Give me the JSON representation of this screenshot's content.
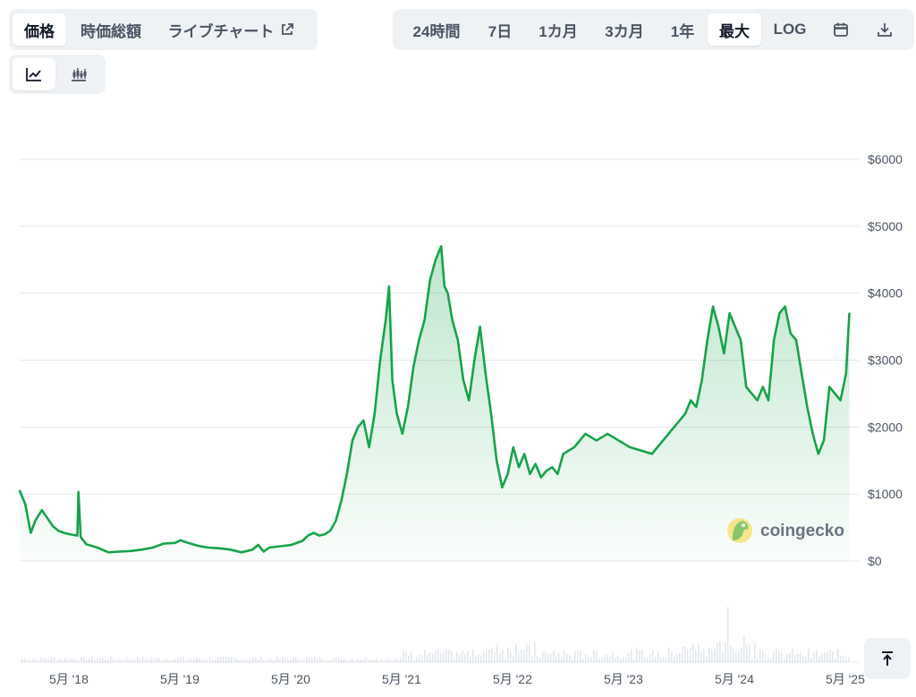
{
  "tabs_left": {
    "price": "価格",
    "market_cap": "時価総額",
    "live_chart": "ライブチャート"
  },
  "chart_style": {
    "line_icon": "line-chart-icon",
    "candle_icon": "candlestick-chart-icon",
    "selected": "line"
  },
  "ranges": {
    "items": [
      "24時間",
      "7日",
      "1カ月",
      "3カ月",
      "1年",
      "最大",
      "LOG"
    ],
    "selected": "最大",
    "calendar_icon": "calendar-icon",
    "download_icon": "download-icon"
  },
  "watermark": "coingecko",
  "colors": {
    "line": "#16a34a",
    "volume": "#cbd5e1",
    "grid": "#e5e7eb"
  },
  "chart_data": {
    "type": "area",
    "y_tick_labels": [
      "$6000",
      "$5000",
      "$4000",
      "$3000",
      "$2000",
      "$1000",
      "$0"
    ],
    "y_ticks": [
      6000,
      5000,
      4000,
      3000,
      2000,
      1000,
      0
    ],
    "ylim": [
      0,
      6000
    ],
    "x_tick_labels": [
      "5月 '18",
      "5月 '19",
      "5月 '20",
      "5月 '21",
      "5月 '22",
      "5月 '23",
      "5月 '24",
      "5月 '25"
    ],
    "x_ticks": [
      2018.33,
      2019.33,
      2020.33,
      2021.33,
      2022.33,
      2023.33,
      2024.33,
      2025.33
    ],
    "xlim": [
      2018.0,
      2025.5
    ],
    "grid": true,
    "series": [
      {
        "x": [
          2018.0,
          2018.05,
          2018.1,
          2018.14,
          2018.2,
          2018.25,
          2018.3,
          2018.35,
          2018.4,
          2018.45,
          2018.52,
          2018.53,
          2018.55,
          2018.6,
          2018.7,
          2018.8,
          2018.9,
          2019.0,
          2019.1,
          2019.2,
          2019.3,
          2019.4,
          2019.45,
          2019.5,
          2019.6,
          2019.7,
          2019.8,
          2019.9,
          2020.0,
          2020.1,
          2020.15,
          2020.2,
          2020.25,
          2020.35,
          2020.45,
          2020.55,
          2020.6,
          2020.65,
          2020.7,
          2020.75,
          2020.8,
          2020.85,
          2020.9,
          2020.95,
          2021.0,
          2021.05,
          2021.1,
          2021.15,
          2021.2,
          2021.25,
          2021.3,
          2021.33,
          2021.36,
          2021.4,
          2021.45,
          2021.5,
          2021.55,
          2021.6,
          2021.65,
          2021.7,
          2021.75,
          2021.8,
          2021.83,
          2021.86,
          2021.9,
          2021.95,
          2022.0,
          2022.05,
          2022.1,
          2022.15,
          2022.2,
          2022.25,
          2022.3,
          2022.35,
          2022.4,
          2022.45,
          2022.5,
          2022.55,
          2022.6,
          2022.65,
          2022.7,
          2022.75,
          2022.8,
          2022.85,
          2022.9,
          2023.0,
          2023.1,
          2023.2,
          2023.3,
          2023.4,
          2023.5,
          2023.6,
          2023.7,
          2023.8,
          2023.9,
          2024.0,
          2024.05,
          2024.1,
          2024.15,
          2024.2,
          2024.25,
          2024.3,
          2024.35,
          2024.4,
          2024.45,
          2024.5,
          2024.55,
          2024.6,
          2024.65,
          2024.7,
          2024.75,
          2024.8,
          2024.85,
          2024.9,
          2024.95,
          2025.0,
          2025.05,
          2025.1,
          2025.15,
          2025.2,
          2025.25,
          2025.3,
          2025.35,
          2025.4,
          2025.45,
          2025.48
        ],
        "values": [
          1050,
          850,
          420,
          600,
          760,
          640,
          520,
          450,
          420,
          400,
          380,
          1030,
          360,
          250,
          200,
          130,
          140,
          150,
          170,
          200,
          260,
          270,
          310,
          280,
          230,
          200,
          190,
          170,
          130,
          170,
          240,
          140,
          200,
          220,
          240,
          300,
          380,
          420,
          380,
          400,
          450,
          600,
          900,
          1300,
          1800,
          2000,
          2100,
          1700,
          2200,
          3000,
          3600,
          4100,
          2700,
          2200,
          1900,
          2300,
          2900,
          3300,
          3600,
          4200,
          4500,
          4700,
          4100,
          4000,
          3600,
          3300,
          2700,
          2400,
          3000,
          3500,
          2800,
          2200,
          1500,
          1100,
          1300,
          1700,
          1400,
          1600,
          1300,
          1450,
          1250,
          1350,
          1400,
          1300,
          1600,
          1700,
          1900,
          1800,
          1900,
          1800,
          1700,
          1650,
          1600,
          1800,
          2000,
          2200,
          2400,
          2300,
          2700,
          3300,
          3800,
          3500,
          3100,
          3700,
          3500,
          3300,
          2600,
          2500,
          2400,
          2600,
          2400,
          3300,
          3700,
          3800,
          3400,
          3300,
          2800,
          2300,
          1900,
          1600,
          1800,
          2600,
          2500,
          2400,
          2800,
          3700
        ]
      }
    ],
    "watermark": "coingecko"
  }
}
